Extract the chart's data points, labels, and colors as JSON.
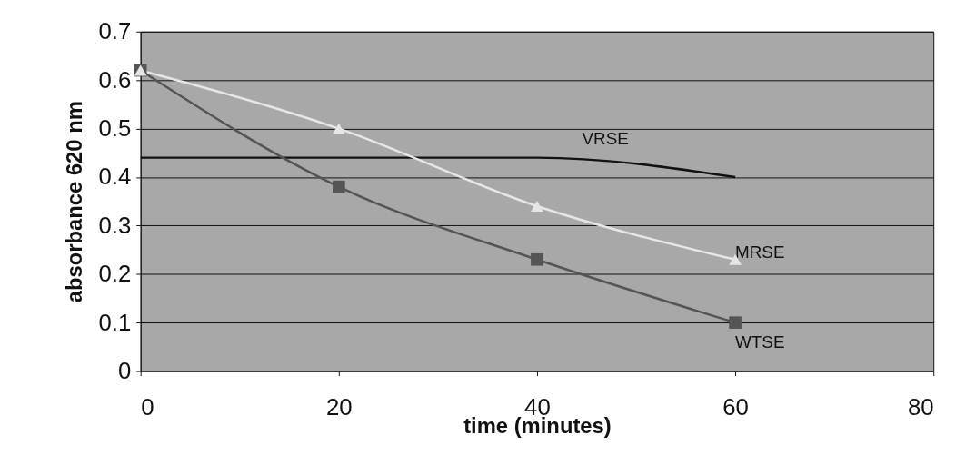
{
  "chart_data": {
    "type": "line",
    "xlabel": "time (minutes)",
    "ylabel": "absorbance 620 nm",
    "x": [
      0,
      20,
      40,
      60
    ],
    "series": [
      {
        "name": "VRSE",
        "color": "#111111",
        "values": [
          0.44,
          0.44,
          0.44,
          0.4
        ],
        "marker": "none"
      },
      {
        "name": "MRSE",
        "color": "#e6e6e6",
        "values": [
          0.62,
          0.5,
          0.34,
          0.23
        ],
        "marker": "triangle"
      },
      {
        "name": "WTSE",
        "color": "#555555",
        "values": [
          0.62,
          0.38,
          0.23,
          0.1
        ],
        "marker": "square"
      }
    ],
    "xlim": [
      0,
      80
    ],
    "xticks": [
      0,
      20,
      40,
      60,
      80
    ],
    "ylim": [
      0,
      0.7
    ],
    "yticks": [
      0,
      0.1,
      0.2,
      0.3,
      0.4,
      0.5,
      0.6,
      0.7
    ],
    "grid": "y",
    "line_style": "solid"
  }
}
